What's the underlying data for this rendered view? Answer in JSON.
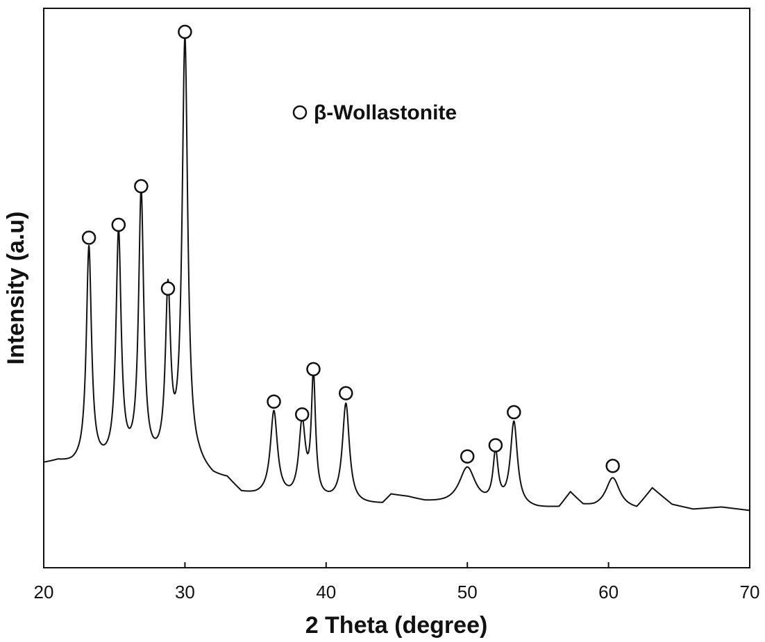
{
  "chart_data": {
    "type": "line",
    "title": "",
    "xlabel": "2 Theta (degree)",
    "ylabel": "Intensity (a.u)",
    "xlim": [
      20,
      70
    ],
    "ylim": [
      0,
      100
    ],
    "x_ticks": [
      20,
      30,
      40,
      50,
      60,
      70
    ],
    "y_ticks_shown": false,
    "grid": false,
    "legend": {
      "placement": "top-center",
      "marker": "open-circle",
      "label": "β-Wollastonite"
    },
    "baseline": [
      [
        20,
        18.5
      ],
      [
        21,
        18.8
      ],
      [
        22,
        18.2
      ],
      [
        25,
        18.0
      ],
      [
        28,
        17.8
      ],
      [
        31,
        17.4
      ],
      [
        32,
        15.8
      ],
      [
        33,
        15.5
      ],
      [
        34,
        13.0
      ],
      [
        35,
        12.6
      ],
      [
        36.5,
        12.4
      ],
      [
        37.5,
        11.9
      ],
      [
        40,
        11.6
      ],
      [
        42,
        11.0
      ],
      [
        44,
        11.2
      ],
      [
        44.6,
        12.8
      ],
      [
        45.8,
        12.4
      ],
      [
        47,
        11.6
      ],
      [
        48.5,
        11.2
      ],
      [
        51,
        10.8
      ],
      [
        55,
        10.4
      ],
      [
        56.5,
        10.6
      ],
      [
        57.3,
        13.2
      ],
      [
        58.2,
        10.9
      ],
      [
        59,
        10.5
      ],
      [
        62,
        10.3
      ],
      [
        63.1,
        14.0
      ],
      [
        64.5,
        11.2
      ],
      [
        66,
        10.4
      ],
      [
        68,
        10.8
      ],
      [
        70,
        10.2
      ]
    ],
    "peaks": [
      {
        "x": 23.2,
        "y": 56.8,
        "label": "β-Wollastonite"
      },
      {
        "x": 25.3,
        "y": 59.1,
        "label": "β-Wollastonite"
      },
      {
        "x": 26.9,
        "y": 66.0,
        "label": "β-Wollastonite"
      },
      {
        "x": 28.8,
        "y": 47.7,
        "label": "β-Wollastonite"
      },
      {
        "x": 30.0,
        "y": 93.6,
        "label": "β-Wollastonite"
      },
      {
        "x": 36.3,
        "y": 27.5,
        "label": "β-Wollastonite"
      },
      {
        "x": 38.3,
        "y": 25.2,
        "label": "β-Wollastonite"
      },
      {
        "x": 39.1,
        "y": 33.3,
        "label": "β-Wollastonite"
      },
      {
        "x": 41.4,
        "y": 29.0,
        "label": "β-Wollastonite"
      },
      {
        "x": 50.0,
        "y": 17.7,
        "label": "β-Wollastonite"
      },
      {
        "x": 52.0,
        "y": 19.7,
        "label": "β-Wollastonite"
      },
      {
        "x": 53.3,
        "y": 25.6,
        "label": "β-Wollastonite"
      },
      {
        "x": 60.3,
        "y": 16.0,
        "label": "β-Wollastonite"
      }
    ],
    "peak_widths": [
      0.22,
      0.22,
      0.22,
      0.22,
      0.24,
      0.3,
      0.28,
      0.18,
      0.3,
      0.7,
      0.22,
      0.3,
      0.6
    ],
    "marker_offset": 2.2
  }
}
